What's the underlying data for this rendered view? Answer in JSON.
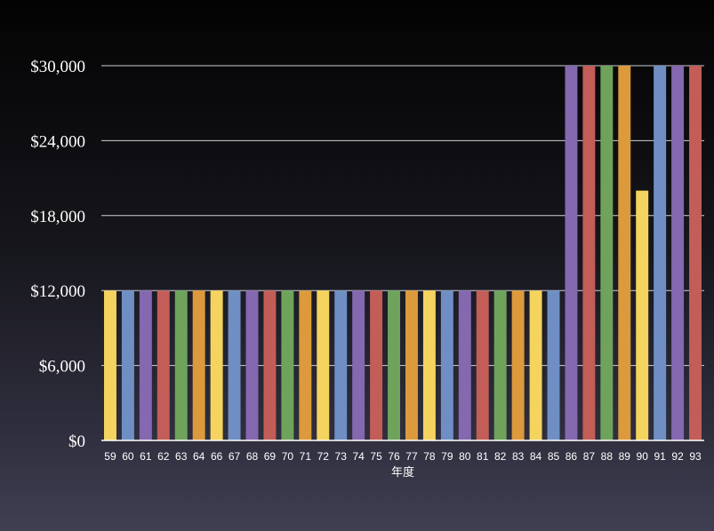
{
  "chart_data": {
    "type": "bar",
    "title": "",
    "xlabel": "年度",
    "ylabel": "",
    "ylim": [
      0,
      30000
    ],
    "yticks": [
      0,
      6000,
      12000,
      18000,
      24000,
      30000
    ],
    "ytick_labels": [
      "$0",
      "$6,000",
      "$12,000",
      "$18,000",
      "$24,000",
      "$30,000"
    ],
    "grid": true,
    "legend": "none",
    "categories": [
      "59",
      "60",
      "61",
      "62",
      "63",
      "64",
      "66",
      "67",
      "68",
      "69",
      "70",
      "71",
      "72",
      "73",
      "74",
      "75",
      "76",
      "77",
      "78",
      "79",
      "80",
      "81",
      "82",
      "83",
      "84",
      "85",
      "86",
      "87",
      "88",
      "89",
      "90",
      "91",
      "92",
      "93"
    ],
    "values": [
      12000,
      12000,
      12000,
      12000,
      12000,
      12000,
      12000,
      12000,
      12000,
      12000,
      12000,
      12000,
      12000,
      12000,
      12000,
      12000,
      12000,
      12000,
      12000,
      12000,
      12000,
      12000,
      12000,
      12000,
      12000,
      12000,
      30000,
      30000,
      30000,
      30000,
      20000,
      30000,
      30000,
      30000
    ],
    "bar_colors": [
      "#f4d35e",
      "#6f8fc4",
      "#8468b0",
      "#c25d57",
      "#6fa35b",
      "#dc9a3c"
    ]
  }
}
